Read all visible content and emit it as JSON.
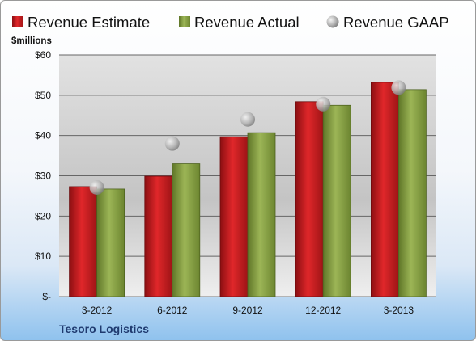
{
  "chart_data": {
    "type": "bar",
    "units_label": "$millions",
    "categories": [
      "3-2012",
      "6-2012",
      "9-2012",
      "12-2012",
      "3-2013"
    ],
    "series": [
      {
        "name": "Revenue Estimate",
        "kind": "bar",
        "color": "#c0191c",
        "values": [
          27.3,
          29.9,
          39.7,
          48.4,
          53.2
        ]
      },
      {
        "name": "Revenue Actual",
        "kind": "bar",
        "color": "#7f9a3a",
        "values": [
          26.7,
          33.0,
          40.7,
          47.5,
          51.4
        ]
      },
      {
        "name": "Revenue GAAP",
        "kind": "scatter",
        "color": "#b0b0b0",
        "values": [
          27.1,
          38.0,
          44.0,
          47.8,
          51.9
        ]
      }
    ],
    "ylim": [
      0,
      60
    ],
    "yticks": [
      0,
      10,
      20,
      30,
      40,
      50,
      60
    ],
    "ytick_labels": [
      "$-",
      "$10",
      "$20",
      "$30",
      "$40",
      "$50",
      "$60"
    ],
    "grid": true,
    "legend_position": "top"
  },
  "footer": {
    "company": "Tesoro Logistics"
  }
}
